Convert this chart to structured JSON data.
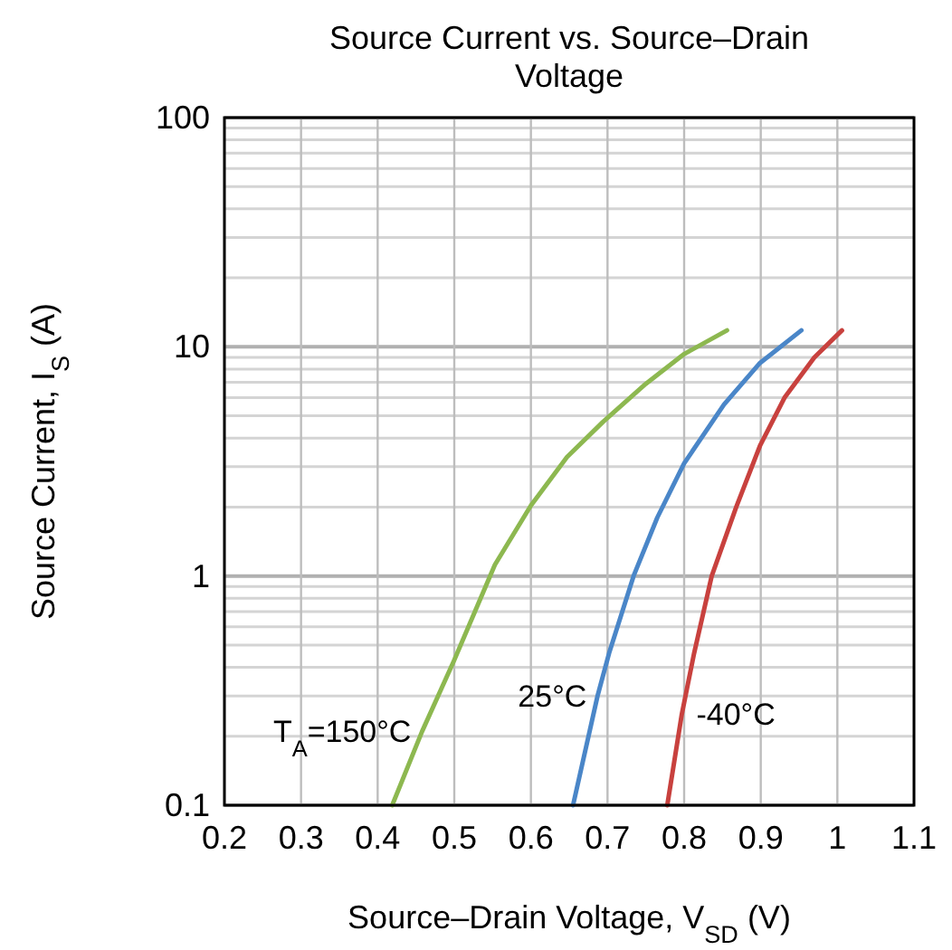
{
  "chart_data": {
    "type": "line",
    "title": "Source Current vs. Source–Drain Voltage",
    "xlabel": "Source–Drain Voltage, V$_{SD}$ (V)",
    "ylabel": "Source Current, I$_{S}$ (A)",
    "log": "y",
    "grid": true,
    "marker": "none",
    "line_style": "solid",
    "xlim": [
      0.2,
      1.1
    ],
    "xticks": [
      0.2,
      0.3,
      0.4,
      0.5,
      0.6,
      0.7,
      0.8,
      0.9,
      1,
      1.1
    ],
    "ylim": [
      0.1,
      100
    ],
    "yticks": [
      0.1,
      1,
      10,
      100
    ],
    "series": [
      {
        "name": "T$_{A}$=150°C",
        "color": "#8db850",
        "x": [
          0.419,
          0.458,
          0.5,
          0.553,
          0.6,
          0.647,
          0.694,
          0.75,
          0.8,
          0.856
        ],
        "values": [
          0.1,
          0.21,
          0.43,
          1.12,
          2.03,
          3.3,
          4.7,
          6.9,
          9.3,
          11.8
        ]
      },
      {
        "name": "25°C",
        "color": "#4a86c8",
        "x": [
          0.655,
          0.687,
          0.702,
          0.734,
          0.765,
          0.8,
          0.852,
          0.899,
          0.953
        ],
        "values": [
          0.1,
          0.3,
          0.46,
          1.0,
          1.8,
          3.1,
          5.6,
          8.5,
          11.8
        ]
      },
      {
        "name": "-40°C",
        "color": "#c8413e",
        "x": [
          0.778,
          0.797,
          0.813,
          0.836,
          0.868,
          0.899,
          0.931,
          0.97,
          1.006
        ],
        "values": [
          0.1,
          0.25,
          0.46,
          1.0,
          2.0,
          3.7,
          6.0,
          9.0,
          11.8
        ]
      }
    ]
  }
}
